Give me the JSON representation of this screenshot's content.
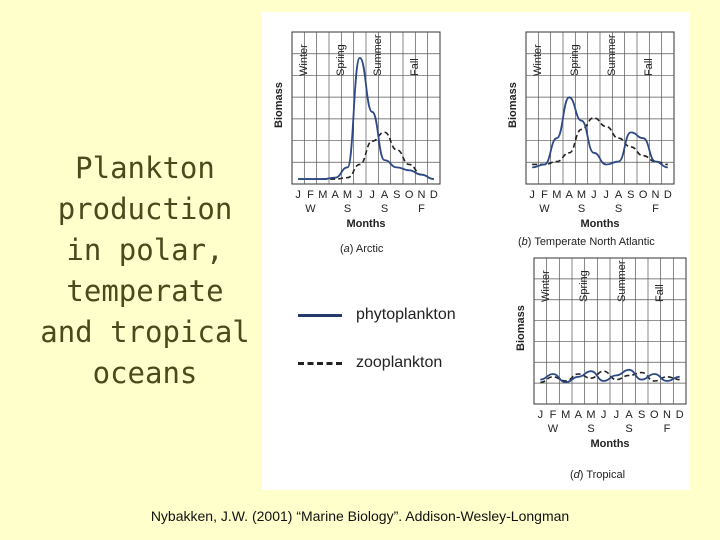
{
  "title_lines": [
    "Plankton",
    "production",
    "in polar,",
    "temperate",
    "and tropical",
    "oceans"
  ],
  "legend": {
    "phytoplankton": "phytoplankton",
    "zooplankton": "zooplankton"
  },
  "citation": "Nybakken, J.W. (2001)  “Marine Biology”.  Addison-Wesley-Longman",
  "panel_labels": {
    "seasons": [
      "Winter",
      "Spring",
      "Summer",
      "Fall"
    ],
    "y_label": "Biomass",
    "x_label": "Months",
    "months": [
      "J",
      "F",
      "M",
      "A",
      "M",
      "J",
      "J",
      "A",
      "S",
      "O",
      "N",
      "D"
    ],
    "season_initials": [
      "W",
      "S",
      "S",
      "F"
    ]
  },
  "panels": [
    {
      "caption_prefix": "(",
      "caption_letter": "a",
      "caption_suffix": ") Arctic",
      "phytoplankton": [
        2,
        2,
        2,
        3,
        10,
        85,
        48,
        15,
        10,
        8,
        5,
        2
      ],
      "zooplankton": [
        2,
        2,
        2,
        2,
        3,
        12,
        28,
        34,
        22,
        12,
        5,
        2
      ]
    },
    {
      "caption_prefix": "(",
      "caption_letter": "b",
      "caption_suffix": ") Temperate North Atlantic",
      "phytoplankton": [
        10,
        12,
        30,
        58,
        42,
        20,
        12,
        14,
        34,
        30,
        14,
        10
      ],
      "zooplankton": [
        12,
        12,
        14,
        20,
        36,
        44,
        38,
        30,
        24,
        18,
        14,
        12
      ]
    },
    {
      "caption_prefix": "(",
      "caption_letter": "d",
      "caption_suffix": ") Tropical",
      "phytoplankton": [
        16,
        20,
        14,
        18,
        22,
        15,
        19,
        23,
        16,
        20,
        15,
        18
      ],
      "zooplankton": [
        14,
        18,
        15,
        20,
        17,
        22,
        16,
        19,
        21,
        15,
        18,
        16
      ]
    }
  ]
}
